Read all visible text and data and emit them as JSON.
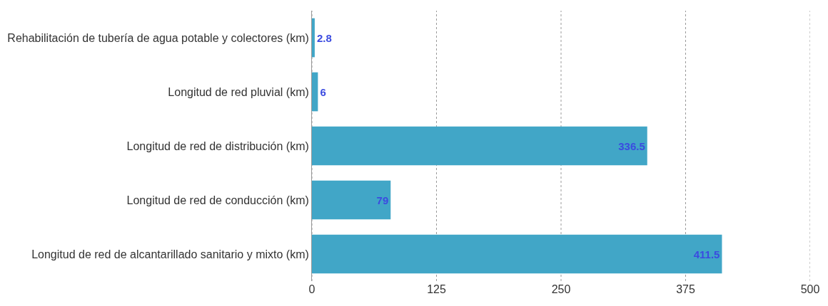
{
  "chart_data": {
    "type": "bar",
    "orientation": "horizontal",
    "categories": [
      "Rehabilitación de tubería de agua potable y colectores (km)",
      "Longitud de red pluvial (km)",
      "Longitud de red de distribución (km)",
      "Longitud de red de conducción (km)",
      "Longitud de red de alcantarillado sanitario y mixto (km)"
    ],
    "values": [
      2.8,
      6,
      336.5,
      79,
      411.5
    ],
    "color": "#41a6c7",
    "xlim": [
      0,
      500
    ],
    "xticks": [
      0,
      125,
      250,
      375,
      500
    ],
    "grid": "x",
    "data_labels": true
  }
}
